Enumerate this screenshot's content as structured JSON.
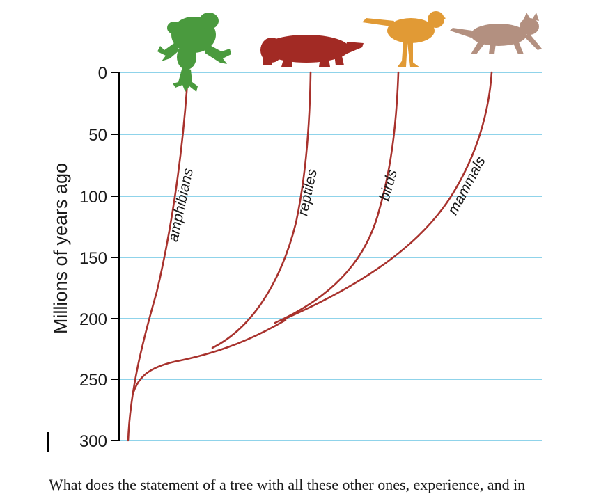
{
  "diagram": {
    "axis_title": "Millions of years ago",
    "ticks": [
      "0",
      "50",
      "100",
      "150",
      "200",
      "250",
      "300"
    ],
    "branches": [
      {
        "label": "amphibians",
        "origin_mya": 262
      },
      {
        "label": "reptiles",
        "origin_mya": 225
      },
      {
        "label": "birds",
        "origin_mya": 200
      },
      {
        "label": "mammals",
        "origin_mya": 200
      }
    ],
    "root_mya": 300,
    "animals": [
      {
        "icon": "frog-icon",
        "color": "#4a9a3e"
      },
      {
        "icon": "reptile-icon",
        "color": "#a22a24"
      },
      {
        "icon": "bird-icon",
        "color": "#e19a35"
      },
      {
        "icon": "cat-icon",
        "color": "#b39080"
      }
    ],
    "colors": {
      "gridline": "#8fd3ea",
      "branch": "#a8322d",
      "axis": "#000000"
    }
  },
  "caption": "What does the statement of a tree with all these other ones, experience, and in"
}
